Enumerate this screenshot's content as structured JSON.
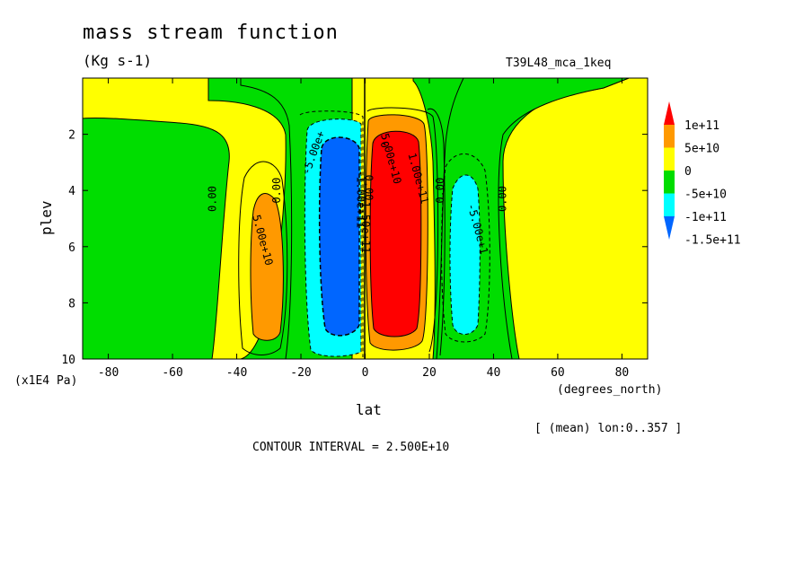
{
  "chart_data": {
    "type": "heatmap",
    "title": "mass stream function",
    "units": "(Kg s-1)",
    "run_label": "T39L48_mca_1keq",
    "xlabel": "lat",
    "x_units": "(degrees_north)",
    "ylabel": "plev",
    "y_units": "(x1E4 Pa)",
    "mean_note": "[ (mean) lon:0..357 ]",
    "contour_interval": "CONTOUR INTERVAL = 2.500E+10",
    "xlim": [
      -88,
      88
    ],
    "ylim": [
      10,
      0
    ],
    "x_ticks": [
      -80,
      -60,
      -40,
      -20,
      0,
      20,
      40,
      60,
      80
    ],
    "x_tick_labels": [
      "-80",
      "-60",
      "-40",
      "-20",
      "0",
      "20",
      "40",
      "60",
      "80"
    ],
    "y_ticks": [
      2,
      4,
      6,
      8,
      10
    ],
    "y_tick_labels": [
      "2",
      "4",
      "6",
      "8",
      "10"
    ],
    "colorbar": {
      "labels": [
        "1e+11",
        "5e+10",
        "0",
        "-5e+10",
        "-1e+11",
        "-1.5e+11"
      ],
      "colors": [
        "#ff0000",
        "#ff9900",
        "#ffff00",
        "#00dd00",
        "#00ffff",
        "#0066ff"
      ]
    },
    "contour_labels": [
      {
        "text": "0.00",
        "lat": -46.5,
        "plev": 4.3,
        "rot": -90
      },
      {
        "text": "0.00",
        "lat": -26.5,
        "plev": 4.0,
        "rot": -90
      },
      {
        "text": "5.00e+10",
        "lat": -33,
        "plev": 5.8,
        "rot": 75
      },
      {
        "text": "-5.00e+",
        "lat": -15,
        "plev": 2.7,
        "rot": -70
      },
      {
        "text": "-1.00e+11",
        "lat": -2.5,
        "plev": 4.3,
        "rot": 90
      },
      {
        "text": "-1.50e+11",
        "lat": -1,
        "plev": 5.2,
        "rot": 90
      },
      {
        "text": "0.00",
        "lat": 0,
        "plev": 3.9,
        "rot": 90
      },
      {
        "text": "0",
        "lat": 5,
        "plev": 2.4,
        "rot": 75
      },
      {
        "text": "5.00e+10",
        "lat": 7,
        "plev": 2.9,
        "rot": 75
      },
      {
        "text": "1.00e+11",
        "lat": 15.5,
        "plev": 3.6,
        "rot": 75
      },
      {
        "text": "0.00",
        "lat": 24.5,
        "plev": 4.0,
        "rot": -90
      },
      {
        "text": "-5.00e+1",
        "lat": 34,
        "plev": 5.4,
        "rot": 75
      },
      {
        "text": "0.00",
        "lat": 44,
        "plev": 4.3,
        "rot": -90
      }
    ]
  }
}
